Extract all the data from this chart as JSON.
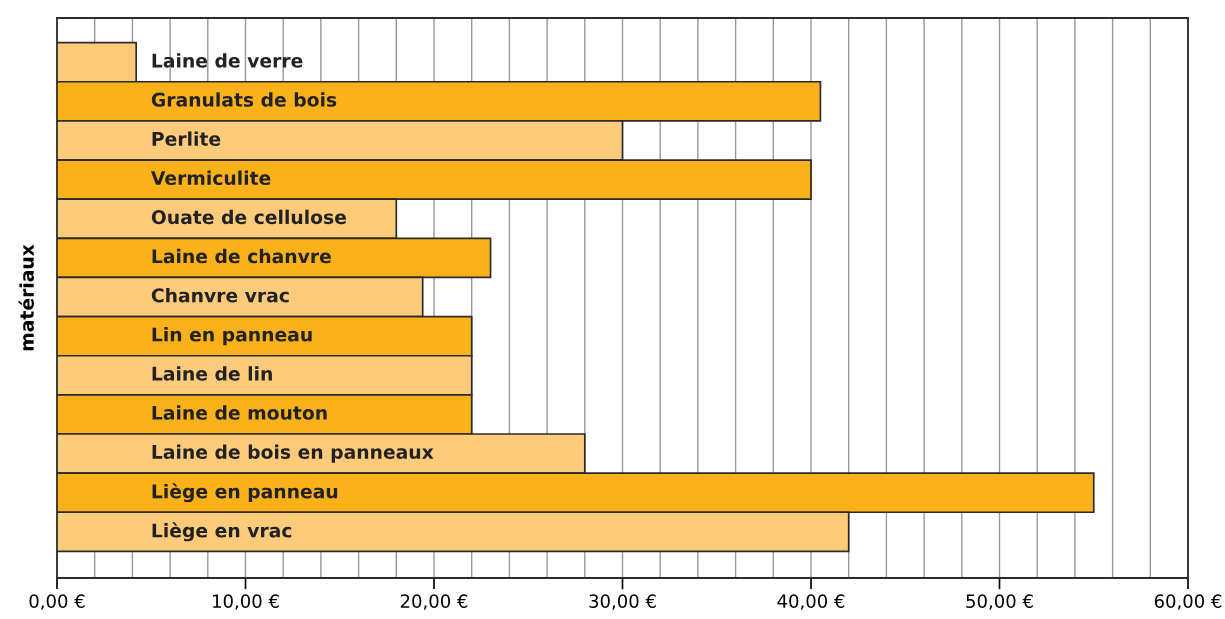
{
  "chart_data": {
    "type": "bar",
    "orientation": "horizontal",
    "ylabel": "matériaux",
    "categories": [
      "Laine de verre",
      "Granulats de bois",
      "Perlite",
      "Vermiculite",
      "Ouate de cellulose",
      "Laine de chanvre",
      "Chanvre vrac",
      "Lin en panneau",
      "Laine de lin",
      "Laine de mouton",
      "Laine de bois en panneaux",
      "Liège en panneau",
      "Liège en vrac"
    ],
    "values": [
      4.2,
      40.5,
      30.0,
      40.0,
      18.0,
      23.0,
      19.4,
      22.0,
      22.0,
      22.0,
      28.0,
      55.0,
      42.0
    ],
    "colors": [
      "#fdcb7a",
      "#fbb11a",
      "#fdcb7a",
      "#fbb11a",
      "#fdcb7a",
      "#fbb11a",
      "#fdcb7a",
      "#fbb11a",
      "#fdcb7a",
      "#fbb11a",
      "#fdcb7a",
      "#fbb11a",
      "#fdcb7a"
    ],
    "xlim": [
      0,
      60
    ],
    "xticks": [
      {
        "value": 0,
        "label": "0,00 €"
      },
      {
        "value": 2,
        "label": null
      },
      {
        "value": 4,
        "label": null
      },
      {
        "value": 6,
        "label": null
      },
      {
        "value": 8,
        "label": null
      },
      {
        "value": 10,
        "label": "10,00 €"
      },
      {
        "value": 12,
        "label": null
      },
      {
        "value": 14,
        "label": null
      },
      {
        "value": 16,
        "label": null
      },
      {
        "value": 18,
        "label": null
      },
      {
        "value": 20,
        "label": "20,00 €"
      },
      {
        "value": 22,
        "label": null
      },
      {
        "value": 24,
        "label": null
      },
      {
        "value": 26,
        "label": null
      },
      {
        "value": 28,
        "label": null
      },
      {
        "value": 30,
        "label": "30,00 €"
      },
      {
        "value": 32,
        "label": null
      },
      {
        "value": 34,
        "label": null
      },
      {
        "value": 36,
        "label": null
      },
      {
        "value": 38,
        "label": null
      },
      {
        "value": 40,
        "label": "40,00 €"
      },
      {
        "value": 42,
        "label": null
      },
      {
        "value": 44,
        "label": null
      },
      {
        "value": 46,
        "label": null
      },
      {
        "value": 48,
        "label": null
      },
      {
        "value": 50,
        "label": "50,00 €"
      },
      {
        "value": 52,
        "label": null
      },
      {
        "value": 54,
        "label": null
      },
      {
        "value": 56,
        "label": null
      },
      {
        "value": 58,
        "label": null
      },
      {
        "value": 60,
        "label": "60,00 €"
      }
    ],
    "grid": "x",
    "legend": false
  }
}
